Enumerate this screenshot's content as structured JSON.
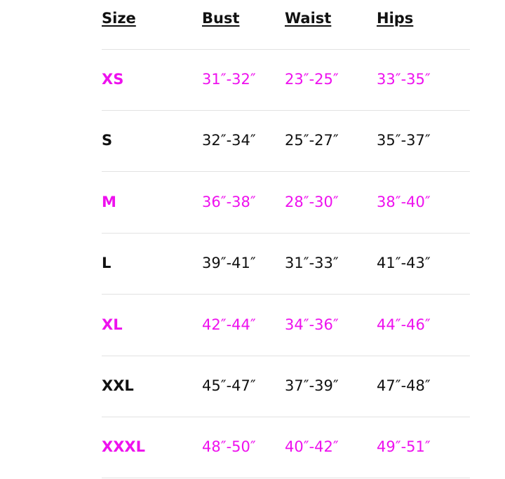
{
  "table": {
    "header": [
      "Size",
      "Bust",
      "Waist",
      "Hips"
    ],
    "rows": [
      [
        "XS",
        "31″-32″",
        "23″-25″",
        "33″-35″"
      ],
      [
        "S",
        "32″-34″",
        "25″-27″",
        "35″-37″"
      ],
      [
        "M",
        "36″-38″",
        "28″-30″",
        "38″-40″"
      ],
      [
        "L",
        "39″-41″",
        "31″-33″",
        "41″-43″"
      ],
      [
        "XL",
        "42″-44″",
        "34″-36″",
        "44″-46″"
      ],
      [
        "XXL",
        "45″-47″",
        "37″-39″",
        "47″-48″"
      ],
      [
        "XXXL",
        "48″-50″",
        "40″-42″",
        "49″-51″"
      ]
    ]
  }
}
